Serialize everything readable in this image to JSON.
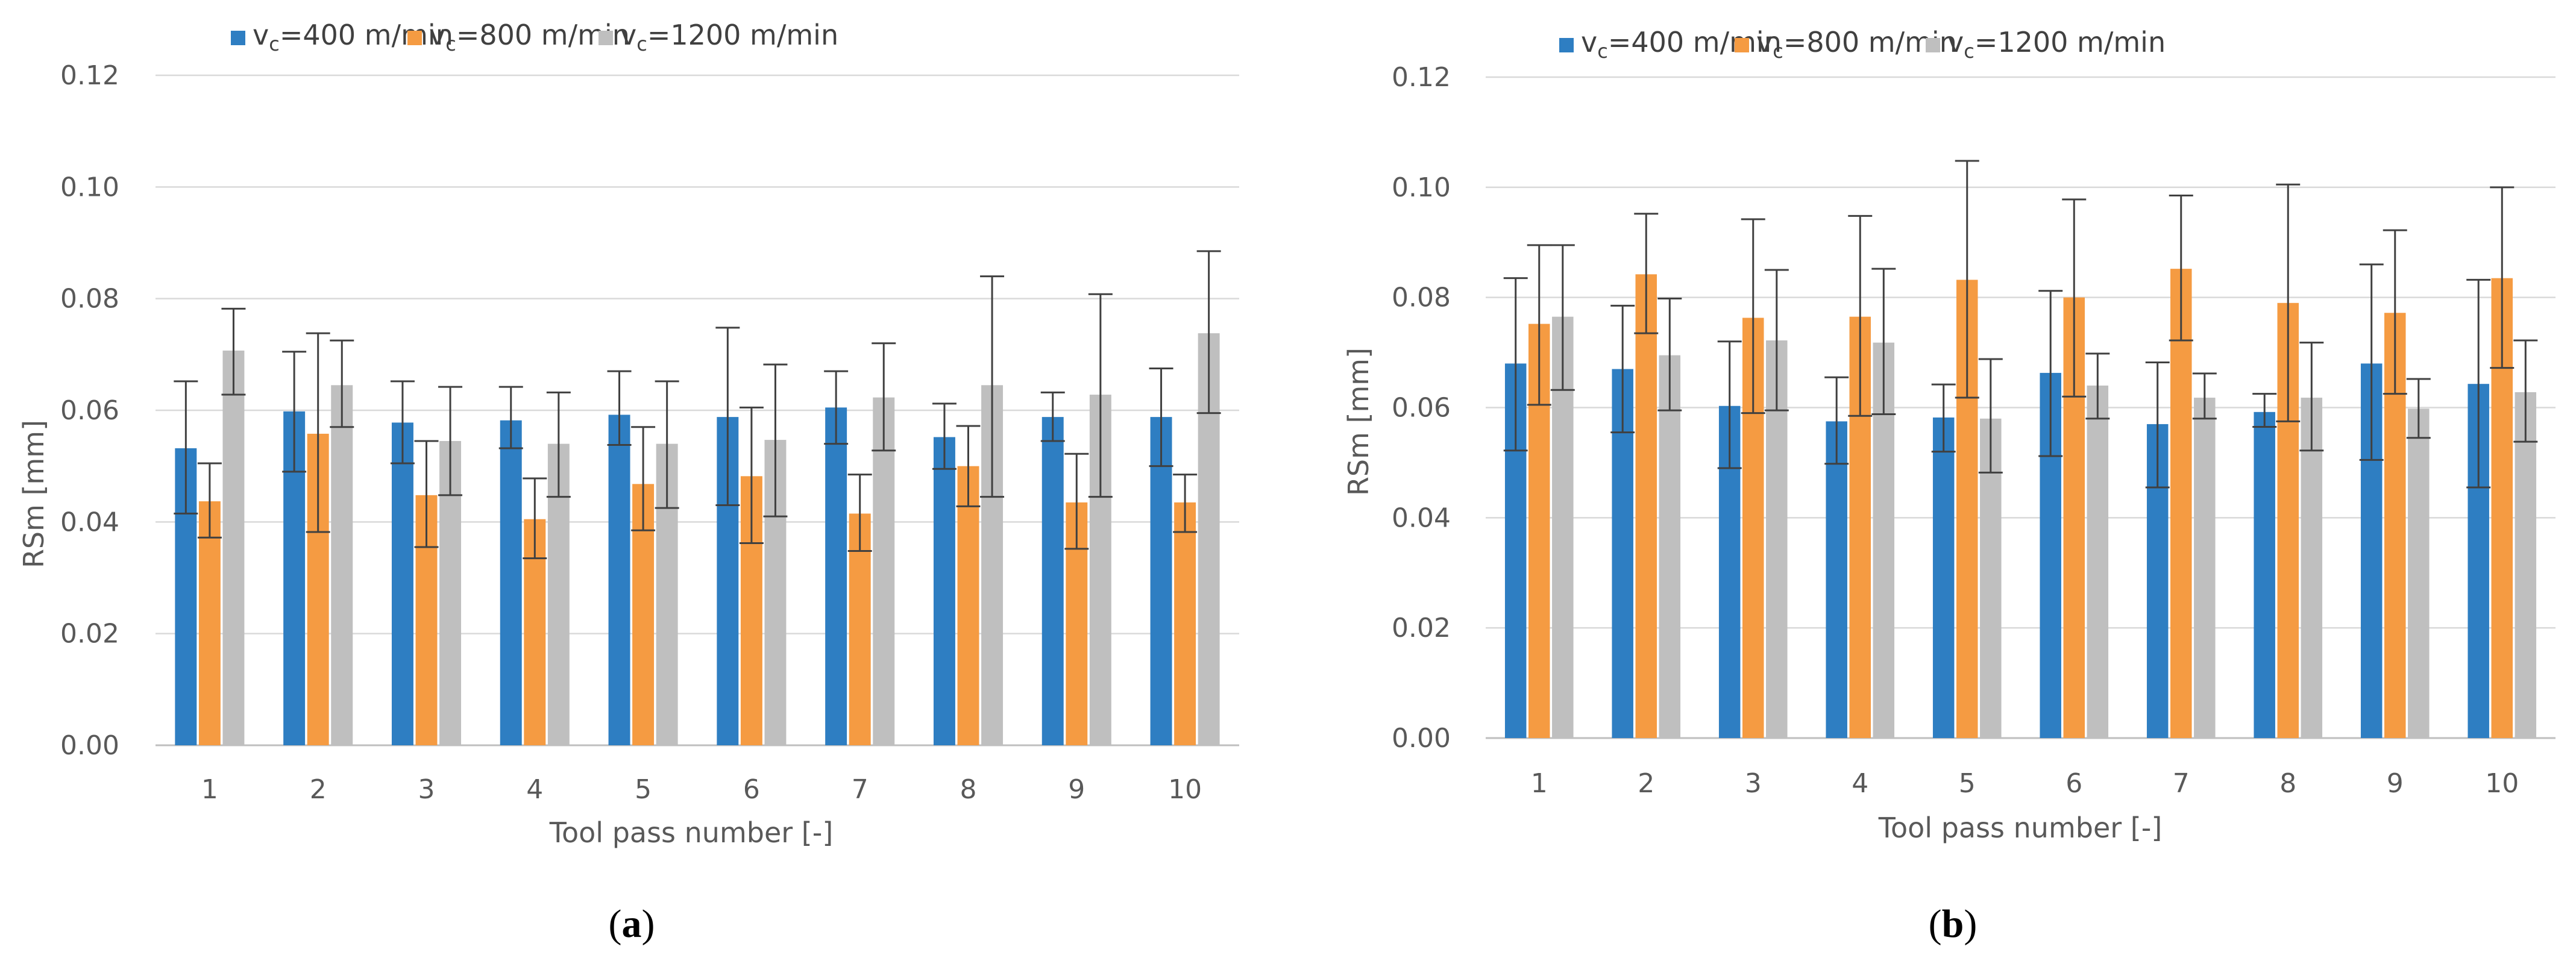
{
  "colors": {
    "series": [
      "#2E7EC2",
      "#F59B42",
      "#BFBFBF"
    ],
    "grid": "#D9D9D9",
    "axis": "#BFBFBF",
    "error_bar": "#404040",
    "text": "#595959"
  },
  "chart_data": [
    {
      "type": "bar",
      "panel_label": "a",
      "xlabel": "Tool pass number [-]",
      "ylabel": "RSm [mm]",
      "ylim": [
        0,
        0.12
      ],
      "yticks": [
        "0.00",
        "0.02",
        "0.04",
        "0.06",
        "0.08",
        "0.10",
        "0.12"
      ],
      "grid": true,
      "legend_position": "top",
      "categories": [
        "1",
        "2",
        "3",
        "4",
        "5",
        "6",
        "7",
        "8",
        "9",
        "10"
      ],
      "series": [
        {
          "name": "vc=400 m/min",
          "legend_sym": "v",
          "legend_sub": "c",
          "legend_rest": "=400 m/min",
          "values": [
            0.0532,
            0.0598,
            0.0578,
            0.0582,
            0.0592,
            0.0588,
            0.0605,
            0.0552,
            0.0588,
            0.0588
          ],
          "err_low": [
            0.0415,
            0.049,
            0.0505,
            0.0532,
            0.0538,
            0.043,
            0.054,
            0.0495,
            0.0545,
            0.05
          ],
          "err_high": [
            0.0652,
            0.0705,
            0.0652,
            0.0642,
            0.067,
            0.0748,
            0.067,
            0.0612,
            0.0632,
            0.0675
          ]
        },
        {
          "name": "vc=800 m/min",
          "legend_sym": "v",
          "legend_sub": "c",
          "legend_rest": "=800 m/min",
          "values": [
            0.0437,
            0.0558,
            0.0448,
            0.0405,
            0.0468,
            0.0482,
            0.0415,
            0.05,
            0.0435,
            0.0435
          ],
          "err_low": [
            0.0372,
            0.0382,
            0.0355,
            0.0335,
            0.0385,
            0.0362,
            0.0348,
            0.0428,
            0.0352,
            0.0382
          ],
          "err_high": [
            0.0505,
            0.0738,
            0.0545,
            0.0478,
            0.057,
            0.0605,
            0.0485,
            0.0572,
            0.0522,
            0.0485
          ]
        },
        {
          "name": "vc=1200 m/min",
          "legend_sym": "v",
          "legend_sub": "c",
          "legend_rest": "=1200 m/min",
          "values": [
            0.0707,
            0.0645,
            0.0545,
            0.054,
            0.054,
            0.0547,
            0.0623,
            0.0645,
            0.0628,
            0.0738
          ],
          "err_low": [
            0.0628,
            0.057,
            0.0448,
            0.0445,
            0.0425,
            0.041,
            0.0528,
            0.0445,
            0.0445,
            0.0595
          ],
          "err_high": [
            0.0782,
            0.0725,
            0.0642,
            0.0632,
            0.0652,
            0.0682,
            0.072,
            0.084,
            0.0808,
            0.0885
          ]
        }
      ]
    },
    {
      "type": "bar",
      "panel_label": "b",
      "xlabel": "Tool pass number [-]",
      "ylabel": "RSm [mm]",
      "ylim": [
        0,
        0.12
      ],
      "yticks": [
        "0.00",
        "0.02",
        "0.04",
        "0.06",
        "0.08",
        "0.10",
        "0.12"
      ],
      "grid": true,
      "legend_position": "top",
      "categories": [
        "1",
        "2",
        "3",
        "4",
        "5",
        "6",
        "7",
        "8",
        "9",
        "10"
      ],
      "series": [
        {
          "name": "vc=400 m/min",
          "legend_sym": "v",
          "legend_sub": "c",
          "legend_rest": "=400 m/min",
          "values": [
            0.068,
            0.067,
            0.0603,
            0.0575,
            0.0582,
            0.0663,
            0.057,
            0.0592,
            0.068,
            0.0643
          ],
          "err_low": [
            0.0522,
            0.0555,
            0.049,
            0.0498,
            0.052,
            0.0512,
            0.0455,
            0.0565,
            0.0505,
            0.0455
          ],
          "err_high": [
            0.0835,
            0.0785,
            0.072,
            0.0655,
            0.0642,
            0.0812,
            0.0682,
            0.0625,
            0.086,
            0.0832
          ]
        },
        {
          "name": "vc=800 m/min",
          "legend_sym": "v",
          "legend_sub": "c",
          "legend_rest": "=800 m/min",
          "values": [
            0.0752,
            0.0842,
            0.0763,
            0.0765,
            0.0832,
            0.08,
            0.0852,
            0.079,
            0.0772,
            0.0835
          ],
          "err_low": [
            0.0605,
            0.0735,
            0.059,
            0.0585,
            0.0618,
            0.062,
            0.0722,
            0.0575,
            0.0625,
            0.0672
          ],
          "err_high": [
            0.0895,
            0.0952,
            0.0942,
            0.0948,
            0.1048,
            0.0978,
            0.0985,
            0.1005,
            0.0922,
            0.1
          ]
        },
        {
          "name": "vc=1200 m/min",
          "legend_sym": "v",
          "legend_sub": "c",
          "legend_rest": "=1200 m/min",
          "values": [
            0.0765,
            0.0695,
            0.0722,
            0.0718,
            0.058,
            0.064,
            0.0618,
            0.0618,
            0.0598,
            0.0628
          ],
          "err_low": [
            0.0632,
            0.0595,
            0.0595,
            0.0588,
            0.0482,
            0.058,
            0.058,
            0.0522,
            0.0545,
            0.0538
          ],
          "err_high": [
            0.0895,
            0.0798,
            0.085,
            0.0852,
            0.0688,
            0.0698,
            0.0662,
            0.0718,
            0.0652,
            0.0722
          ]
        }
      ]
    }
  ]
}
